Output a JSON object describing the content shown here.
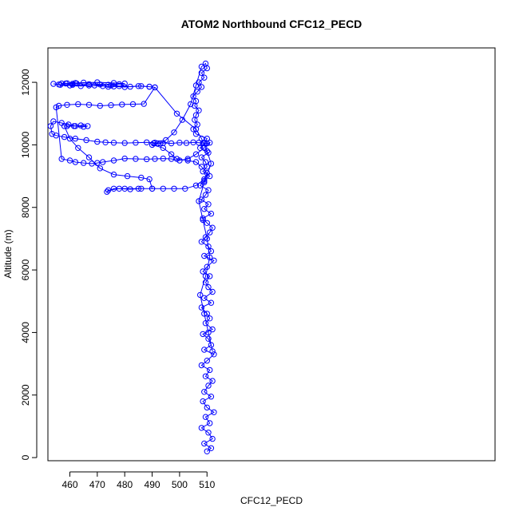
{
  "chart_data": {
    "type": "line",
    "title": "ATOM2 Northbound CFC12_PECD",
    "xlabel": "CFC12_PECD",
    "ylabel": "Altitude (m)",
    "xlim": [
      452.0,
      615.0
    ],
    "ylim": [
      -100,
      13100
    ],
    "xticks": [
      460,
      470,
      480,
      490,
      500,
      510
    ],
    "yticks": [
      0,
      2000,
      4000,
      6000,
      8000,
      10000,
      12000
    ],
    "grid": false,
    "legend": "none",
    "series": [
      {
        "color": "#0000ff",
        "marker": "open-circle",
        "x": [
          510.0,
          511.5,
          509.0,
          512.0,
          510.5,
          508.0,
          511.0,
          509.5,
          512.5,
          510.0,
          508.5,
          511.5,
          509.0,
          510.5,
          512.0,
          509.5,
          511.0,
          508.0,
          510.0,
          512.5,
          509.0,
          511.5,
          510.5,
          508.5,
          512.0,
          509.5,
          511.0,
          510.0,
          508.0,
          511.5,
          509.0,
          512.0,
          510.5,
          509.5,
          511.0,
          508.5,
          510.0,
          512.5,
          509.0,
          511.5,
          510.5,
          508.0,
          509.5,
          511.0,
          512.0,
          510.0,
          508.5,
          511.5,
          509.0,
          510.5,
          508.0,
          509.5,
          510.5,
          507.5,
          509.0,
          511.0,
          508.5,
          510.0,
          509.5,
          508.0,
          510.5,
          507.5,
          509.0,
          510.0,
          506.0,
          505.0,
          506.5,
          505.5,
          506.0,
          507.0,
          505.5,
          506.0,
          505.0,
          506.5,
          508.0,
          507.0,
          509.0,
          508.0,
          510.0,
          509.5,
          508.0,
          506.0,
          504.0,
          501.0,
          498.0,
          495.0,
          493.0,
          492.0,
          490.5,
          490.0,
          494.0,
          497.0,
          499.0,
          503.0,
          506.0,
          508.0,
          510.0,
          509.0,
          506.0,
          502.0,
          498.0,
          494.0,
          490.0,
          485.0,
          480.0,
          476.0,
          473.5,
          474.0,
          478.0,
          482.0,
          486.0,
          490.0,
          489.0,
          486.0,
          481.0,
          476.0,
          471.0,
          467.0,
          463.0,
          460.0,
          458.0,
          459.0,
          461.5,
          464.0,
          466.5,
          465.0,
          462.0,
          459.5,
          457.0,
          454.0,
          453.0,
          453.5,
          455.0,
          458.0,
          462.0,
          466.0,
          470.0,
          473.0,
          476.0,
          480.0,
          484.0,
          488.0,
          491.0,
          494.0,
          497.0,
          500.0,
          502.5,
          505.0,
          507.0,
          508.5,
          510.0,
          511.0,
          509.0,
          506.0,
          503.0,
          500.0,
          497.0,
          494.0,
          491.0,
          488.0,
          484.0,
          480.0,
          476.0,
          472.0,
          470.0,
          468.0,
          465.0,
          462.0,
          460.0,
          457.0,
          455.0,
          456.0,
          459.0,
          463.0,
          467.0,
          471.0,
          475.0,
          479.0,
          483.0,
          487.0,
          491.0,
          489.0,
          485.0,
          480.0,
          476.0,
          474.0,
          472.0,
          467.0,
          461.0,
          456.0,
          454.0,
          456.5,
          460.0,
          464.0,
          469.0,
          474.0,
          478.0,
          480.0,
          476.0,
          470.0,
          465.0,
          462.0,
          459.0,
          457.0,
          458.5,
          461.0,
          462.5,
          467.0,
          471.0,
          475.0,
          478.0,
          482.0,
          486.0,
          489.0,
          491.0,
          499.0,
          506.0,
          508.0,
          510.0,
          511.5,
          509.0,
          507.0,
          508.5,
          510.0,
          511.0,
          509.5,
          507.5,
          509.0,
          510.5,
          512.0
        ],
        "y": [
          200,
          300,
          450,
          600,
          800,
          950,
          1100,
          1300,
          1450,
          1600,
          1800,
          1950,
          2100,
          2300,
          2450,
          2600,
          2800,
          2950,
          3100,
          3300,
          3450,
          3600,
          3800,
          3950,
          4100,
          4300,
          4450,
          4600,
          4800,
          4950,
          5100,
          5300,
          5450,
          5600,
          5800,
          5950,
          6100,
          6300,
          6450,
          6600,
          6750,
          6900,
          7050,
          7200,
          7350,
          7500,
          7650,
          7800,
          7950,
          8100,
          8250,
          8400,
          8550,
          8700,
          8850,
          9000,
          9150,
          9300,
          9450,
          9600,
          9750,
          9900,
          10050,
          10200,
          10350,
          10500,
          10650,
          10800,
          10950,
          11100,
          11250,
          11400,
          11550,
          11700,
          11850,
          12000,
          12150,
          12300,
          12450,
          12600,
          12500,
          11900,
          11300,
          10800,
          10400,
          10150,
          10050,
          10050,
          10050,
          10000,
          9900,
          9700,
          9550,
          9500,
          9450,
          9300,
          9100,
          8900,
          8700,
          8600,
          8600,
          8600,
          8600,
          8600,
          8600,
          8600,
          8500,
          8550,
          8600,
          8580,
          8600,
          8600,
          8900,
          8950,
          9000,
          9050,
          9250,
          9600,
          9900,
          10200,
          10600,
          10600,
          10600,
          10620,
          10600,
          10580,
          10600,
          10650,
          10700,
          10750,
          10600,
          10350,
          10300,
          10250,
          10200,
          10150,
          10100,
          10080,
          10070,
          10060,
          10070,
          10080,
          10070,
          10060,
          10050,
          10070,
          10060,
          10080,
          10070,
          10060,
          10050,
          10070,
          9900,
          9700,
          9550,
          9500,
          9550,
          9560,
          9550,
          9540,
          9550,
          9560,
          9500,
          9450,
          9420,
          9400,
          9420,
          9450,
          9500,
          9550,
          11200,
          11250,
          11280,
          11300,
          11280,
          11250,
          11270,
          11290,
          11300,
          11310,
          11840,
          11860,
          11880,
          11850,
          11870,
          11860,
          11880,
          11900,
          11920,
          11930,
          11950,
          11920,
          11900,
          11880,
          11900,
          11920,
          11940,
          11960,
          11980,
          12000,
          11990,
          11980,
          11970,
          11960,
          11960,
          11950,
          11960,
          11940,
          11930,
          11900,
          11880,
          11860,
          11880,
          11860,
          11840,
          11000,
          10500,
          10200,
          9800,
          9400,
          8800,
          8200,
          7600,
          7000,
          6400,
          5800,
          5200,
          4600,
          4000,
          3400
        ]
      }
    ]
  }
}
